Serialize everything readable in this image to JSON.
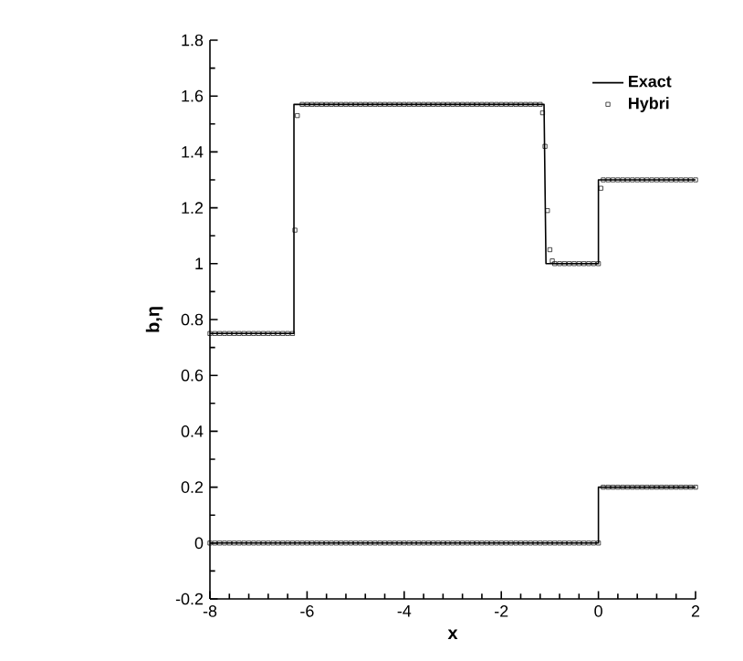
{
  "chart_data": {
    "type": "line",
    "xlabel": "x",
    "ylabel": "b,η",
    "xlim": [
      -8,
      2
    ],
    "ylim": [
      -0.2,
      1.8
    ],
    "xticks": [
      -8,
      -6,
      -4,
      -2,
      0,
      2
    ],
    "yticks": [
      -0.2,
      0,
      0.2,
      0.4,
      0.6,
      0.8,
      1,
      1.2,
      1.4,
      1.6,
      1.8
    ],
    "legend": "top right",
    "grid": false,
    "series": [
      {
        "name": "Exact",
        "color": "#000000",
        "marker": "none",
        "x": [
          -8,
          -6.27,
          -6.27,
          -1.12,
          -1.08,
          0,
          0,
          2
        ],
        "values": [
          0.75,
          0.75,
          1.57,
          1.57,
          1.0,
          1.0,
          1.3,
          1.3
        ]
      },
      {
        "color": "#000000",
        "marker": "none",
        "x": [
          -8,
          0,
          0,
          2
        ],
        "values": [
          0,
          0,
          0.2,
          0.2
        ]
      },
      {
        "name": "Hybri",
        "type": "scatter",
        "color": "#000000",
        "marker": "square",
        "x": [
          -8,
          -7.9,
          -7.8,
          -7.7,
          -7.6,
          -7.5,
          -7.4,
          -7.3,
          -7.2,
          -7.1,
          -7,
          -6.9,
          -6.8,
          -6.7,
          -6.6,
          -6.5,
          -6.4,
          -6.3,
          -6.25,
          -6.2,
          -6.1,
          -6,
          -5.9,
          -5.8,
          -5.7,
          -5.6,
          -5.5,
          -5.4,
          -5.3,
          -5.2,
          -5.1,
          -5,
          -4.9,
          -4.8,
          -4.7,
          -4.6,
          -4.5,
          -4.4,
          -4.3,
          -4.2,
          -4.1,
          -4,
          -3.9,
          -3.8,
          -3.7,
          -3.6,
          -3.5,
          -3.4,
          -3.3,
          -3.2,
          -3.1,
          -3,
          -2.9,
          -2.8,
          -2.7,
          -2.6,
          -2.5,
          -2.4,
          -2.3,
          -2.2,
          -2.1,
          -2,
          -1.9,
          -1.8,
          -1.7,
          -1.6,
          -1.5,
          -1.4,
          -1.3,
          -1.2,
          -1.15,
          -1.1,
          -1.05,
          -1,
          -0.95,
          -0.9,
          -0.8,
          -0.7,
          -0.6,
          -0.5,
          -0.4,
          -0.3,
          -0.2,
          -0.1,
          0,
          0.05,
          0.1,
          0.2,
          0.3,
          0.4,
          0.5,
          0.6,
          0.7,
          0.8,
          0.9,
          1,
          1.1,
          1.2,
          1.3,
          1.4,
          1.5,
          1.6,
          1.7,
          1.8,
          1.9,
          2
        ],
        "values": [
          0.75,
          0.75,
          0.75,
          0.75,
          0.75,
          0.75,
          0.75,
          0.75,
          0.75,
          0.75,
          0.75,
          0.75,
          0.75,
          0.75,
          0.75,
          0.75,
          0.75,
          0.75,
          1.12,
          1.53,
          1.57,
          1.57,
          1.57,
          1.57,
          1.57,
          1.57,
          1.57,
          1.57,
          1.57,
          1.57,
          1.57,
          1.57,
          1.57,
          1.57,
          1.57,
          1.57,
          1.57,
          1.57,
          1.57,
          1.57,
          1.57,
          1.57,
          1.57,
          1.57,
          1.57,
          1.57,
          1.57,
          1.57,
          1.57,
          1.57,
          1.57,
          1.57,
          1.57,
          1.57,
          1.57,
          1.57,
          1.57,
          1.57,
          1.57,
          1.57,
          1.57,
          1.57,
          1.57,
          1.57,
          1.57,
          1.57,
          1.57,
          1.57,
          1.57,
          1.57,
          1.54,
          1.42,
          1.19,
          1.05,
          1.01,
          1.0,
          1.0,
          1.0,
          1.0,
          1.0,
          1.0,
          1.0,
          1.0,
          1.0,
          1.0,
          1.27,
          1.3,
          1.3,
          1.3,
          1.3,
          1.3,
          1.3,
          1.3,
          1.3,
          1.3,
          1.3,
          1.3,
          1.3,
          1.3,
          1.3,
          1.3,
          1.3,
          1.3,
          1.3,
          1.3,
          1.3
        ]
      },
      {
        "type": "scatter",
        "color": "#000000",
        "marker": "square",
        "x": [
          -8,
          -7.9,
          -7.8,
          -7.7,
          -7.6,
          -7.5,
          -7.4,
          -7.3,
          -7.2,
          -7.1,
          -7,
          -6.9,
          -6.8,
          -6.7,
          -6.6,
          -6.5,
          -6.4,
          -6.3,
          -6.2,
          -6.1,
          -6,
          -5.9,
          -5.8,
          -5.7,
          -5.6,
          -5.5,
          -5.4,
          -5.3,
          -5.2,
          -5.1,
          -5,
          -4.9,
          -4.8,
          -4.7,
          -4.6,
          -4.5,
          -4.4,
          -4.3,
          -4.2,
          -4.1,
          -4,
          -3.9,
          -3.8,
          -3.7,
          -3.6,
          -3.5,
          -3.4,
          -3.3,
          -3.2,
          -3.1,
          -3,
          -2.9,
          -2.8,
          -2.7,
          -2.6,
          -2.5,
          -2.4,
          -2.3,
          -2.2,
          -2.1,
          -2,
          -1.9,
          -1.8,
          -1.7,
          -1.6,
          -1.5,
          -1.4,
          -1.3,
          -1.2,
          -1.1,
          -1,
          -0.9,
          -0.8,
          -0.7,
          -0.6,
          -0.5,
          -0.4,
          -0.3,
          -0.2,
          -0.1,
          0,
          0.1,
          0.2,
          0.3,
          0.4,
          0.5,
          0.6,
          0.7,
          0.8,
          0.9,
          1,
          1.1,
          1.2,
          1.3,
          1.4,
          1.5,
          1.6,
          1.7,
          1.8,
          1.9,
          2
        ],
        "values": [
          0,
          0,
          0,
          0,
          0,
          0,
          0,
          0,
          0,
          0,
          0,
          0,
          0,
          0,
          0,
          0,
          0,
          0,
          0,
          0,
          0,
          0,
          0,
          0,
          0,
          0,
          0,
          0,
          0,
          0,
          0,
          0,
          0,
          0,
          0,
          0,
          0,
          0,
          0,
          0,
          0,
          0,
          0,
          0,
          0,
          0,
          0,
          0,
          0,
          0,
          0,
          0,
          0,
          0,
          0,
          0,
          0,
          0,
          0,
          0,
          0,
          0,
          0,
          0,
          0,
          0,
          0,
          0,
          0,
          0,
          0,
          0,
          0,
          0,
          0,
          0,
          0,
          0,
          0,
          0,
          0,
          0.2,
          0.2,
          0.2,
          0.2,
          0.2,
          0.2,
          0.2,
          0.2,
          0.2,
          0.2,
          0.2,
          0.2,
          0.2,
          0.2,
          0.2,
          0.2,
          0.2,
          0.2,
          0.2,
          0.2
        ]
      }
    ]
  }
}
